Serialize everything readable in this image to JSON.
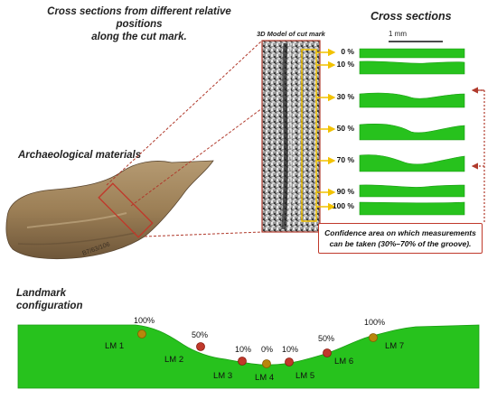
{
  "titles": {
    "main_line1": "Cross sections from different relative positions",
    "main_line2": "along the cut mark.",
    "cross_sections": "Cross sections",
    "archaeological": "Archaeological materials",
    "landmark_line1": "Landmark",
    "landmark_line2": "configuration",
    "model": "3D Model of cut mark"
  },
  "scale": {
    "label": "1 mm"
  },
  "sections": [
    {
      "label": "0 %"
    },
    {
      "label": "10 %"
    },
    {
      "label": "30 %"
    },
    {
      "label": "50 %"
    },
    {
      "label": "70 %"
    },
    {
      "label": "90 %"
    },
    {
      "label": "100 %"
    }
  ],
  "note": {
    "line1": "Confidence area on which measurements",
    "line2": "can be taken (30%–70% of  the groove)."
  },
  "bone": {
    "inscription": "B7/63/106"
  },
  "landmarks": [
    {
      "label": "LM 1",
      "pct": "100%"
    },
    {
      "label": "LM 2",
      "pct": "50%"
    },
    {
      "label": "LM 3",
      "pct": "10%"
    },
    {
      "label": "LM 4",
      "pct": "0%"
    },
    {
      "label": "LM 5",
      "pct": "10%"
    },
    {
      "label": "LM 6",
      "pct": "50%"
    },
    {
      "label": "LM 7",
      "pct": "100%"
    }
  ],
  "colors": {
    "green": "#27c21d",
    "red_dashed": "#b0392b",
    "arrow_yellow": "#f2c200",
    "landmark_dot": "#c0392b"
  }
}
